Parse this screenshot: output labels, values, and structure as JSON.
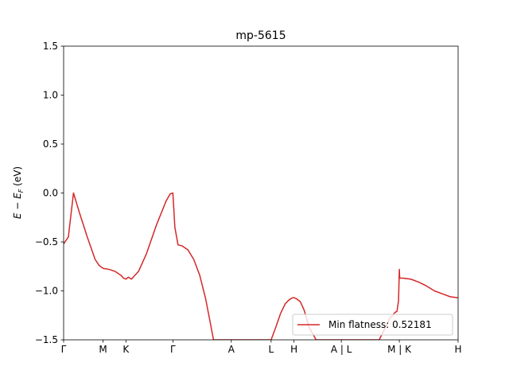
{
  "chart_data": {
    "type": "line",
    "title": "mp-5615",
    "xlabel": "",
    "ylabel": "E − E",
    "ylabel_sub": "F",
    "ylabel_unit": " (eV)",
    "ylim": [
      -1.5,
      1.5
    ],
    "yticks": [
      -1.5,
      -1.0,
      -0.5,
      0.0,
      0.5,
      1.0,
      1.5
    ],
    "ytick_labels": [
      "−1.5",
      "−1.0",
      "−0.5",
      "0.0",
      "0.5",
      "1.0",
      "1.5"
    ],
    "xlim": [
      0,
      1
    ],
    "xticks": [
      {
        "label": "Γ",
        "pos": 0.0
      },
      {
        "label": "M",
        "pos": 0.1
      },
      {
        "label": "K",
        "pos": 0.158
      },
      {
        "label": "Γ",
        "pos": 0.277
      },
      {
        "label": "A",
        "pos": 0.425
      },
      {
        "label": "L",
        "pos": 0.526
      },
      {
        "label": "H",
        "pos": 0.584
      },
      {
        "label": "A | L",
        "pos": 0.704
      },
      {
        "label": "M | K",
        "pos": 0.851
      },
      {
        "label": "H",
        "pos": 1.0
      }
    ],
    "grid": false,
    "legend_position": "lower right",
    "series": [
      {
        "name": "Min flatness: 0.52181",
        "color": "#d62728",
        "x": [
          0.0,
          0.012,
          0.025,
          0.04,
          0.06,
          0.08,
          0.09,
          0.1,
          0.115,
          0.13,
          0.145,
          0.152,
          0.158,
          0.164,
          0.172,
          0.19,
          0.21,
          0.235,
          0.26,
          0.27,
          0.277,
          0.282,
          0.29,
          0.3,
          0.315,
          0.33,
          0.345,
          0.36,
          0.372,
          0.38,
          0.43,
          0.475,
          0.49,
          0.505,
          0.515,
          0.526,
          0.538,
          0.55,
          0.562,
          0.572,
          0.58,
          0.584,
          0.59,
          0.6,
          0.61,
          0.622,
          0.64,
          0.68,
          0.72,
          0.76,
          0.78,
          0.8,
          0.81,
          0.82,
          0.826,
          0.832,
          0.84,
          0.845,
          0.849,
          0.851,
          0.852,
          0.86,
          0.88,
          0.9,
          0.92,
          0.94,
          0.96,
          0.98,
          1.0
        ],
        "y": [
          -0.52,
          -0.45,
          0.0,
          -0.2,
          -0.45,
          -0.68,
          -0.74,
          -0.77,
          -0.78,
          -0.8,
          -0.84,
          -0.87,
          -0.88,
          -0.86,
          -0.88,
          -0.8,
          -0.62,
          -0.33,
          -0.08,
          -0.01,
          0.0,
          -0.35,
          -0.53,
          -0.54,
          -0.58,
          -0.68,
          -0.84,
          -1.08,
          -1.33,
          -1.5,
          -1.5,
          -1.5,
          -1.5,
          -1.5,
          -1.5,
          -1.5,
          -1.37,
          -1.23,
          -1.13,
          -1.09,
          -1.07,
          -1.07,
          -1.08,
          -1.11,
          -1.2,
          -1.37,
          -1.5,
          -1.5,
          -1.5,
          -1.5,
          -1.5,
          -1.5,
          -1.42,
          -1.34,
          -1.28,
          -1.26,
          -1.22,
          -1.21,
          -1.1,
          -0.78,
          -0.87,
          -0.87,
          -0.88,
          -0.91,
          -0.95,
          -1.0,
          -1.03,
          -1.06,
          -1.07
        ]
      }
    ]
  }
}
